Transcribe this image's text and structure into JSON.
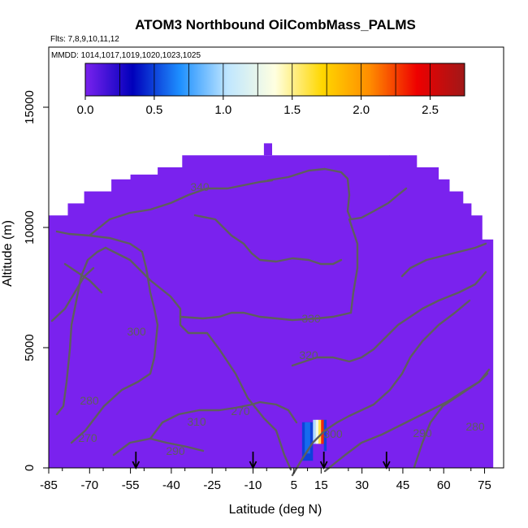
{
  "chart_data": {
    "type": "heatmap",
    "title": "ATOM3 Northbound OilCombMass_PALMS",
    "subtitle_lines": [
      "Flts: 7,8,9,10,11,12",
      "MMDD: 1014,1017,1019,1020,1023,1025"
    ],
    "xlabel": "Latitude (deg N)",
    "ylabel": "Altitude (m)",
    "xlim": [
      -85,
      82
    ],
    "ylim": [
      0,
      17500
    ],
    "xticks": [
      -85,
      -70,
      -55,
      -40,
      -25,
      -10,
      5,
      15,
      30,
      45,
      60,
      75
    ],
    "yticks": [
      0,
      5000,
      10000,
      15000
    ],
    "colorbar": {
      "range": [
        0,
        2.75
      ],
      "ticks": [
        0.0,
        0.5,
        1.0,
        1.5,
        2.0,
        2.5
      ],
      "tick_labels": [
        "0.0",
        "0.5",
        "1.0",
        "1.5",
        "2.0",
        "2.5"
      ],
      "colors": [
        "#7a22ee",
        "#0000bb",
        "#1e90ff",
        "#bfe6ff",
        "#ffffe0",
        "#ffd700",
        "#ff8c00",
        "#ee0000",
        "#a01818"
      ]
    },
    "background_value": 0.0,
    "data_envelope_upper": [
      {
        "x": -85,
        "y": 10500
      },
      {
        "x": -78,
        "y": 11000
      },
      {
        "x": -72,
        "y": 11500
      },
      {
        "x": -62,
        "y": 12000
      },
      {
        "x": -55,
        "y": 12200
      },
      {
        "x": -45,
        "y": 12500
      },
      {
        "x": -36,
        "y": 13000
      },
      {
        "x": -5,
        "y": 13000
      },
      {
        "x": 40,
        "y": 13000
      },
      {
        "x": 50,
        "y": 12500
      },
      {
        "x": 58,
        "y": 12000
      },
      {
        "x": 62,
        "y": 11500
      },
      {
        "x": 67,
        "y": 11000
      },
      {
        "x": 70,
        "y": 10500
      },
      {
        "x": 74,
        "y": 9500
      },
      {
        "x": 78,
        "y": 8500
      }
    ],
    "enhanced_cells": [
      {
        "x": [
          8,
          12
        ],
        "y": [
          300,
          1900
        ],
        "value": 0.5
      },
      {
        "x": [
          9,
          11
        ],
        "y": [
          600,
          1900
        ],
        "value": 0.6
      },
      {
        "x": [
          12,
          13
        ],
        "y": [
          1000,
          2000
        ],
        "value": 1.0
      },
      {
        "x": [
          13,
          14
        ],
        "y": [
          1000,
          2000
        ],
        "value": 1.3
      },
      {
        "x": [
          14,
          15
        ],
        "y": [
          1000,
          2000
        ],
        "value": 1.6
      },
      {
        "x": [
          15,
          16
        ],
        "y": [
          1000,
          2000
        ],
        "value": 2.3
      },
      {
        "x": [
          16,
          17
        ],
        "y": [
          700,
          2000
        ],
        "value": 0.5
      }
    ],
    "contour_labels": [
      "270",
      "280",
      "290",
      "300",
      "310",
      "320",
      "330",
      "340",
      "300",
      "290",
      "280",
      "270"
    ],
    "flight_markers_x": [
      -53,
      -10,
      16,
      39
    ]
  }
}
